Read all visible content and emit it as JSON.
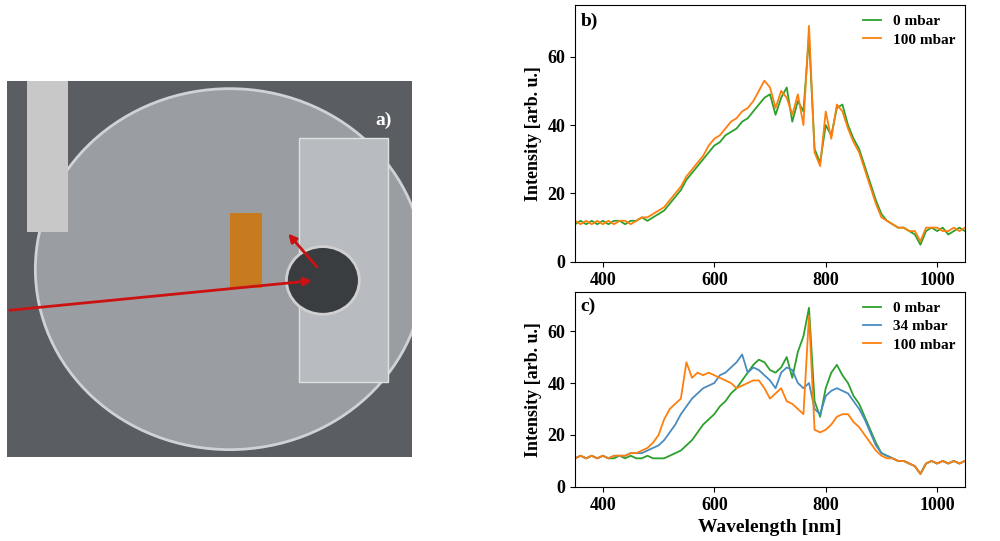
{
  "panel_a": {
    "label": "a)"
  },
  "chart_data": [
    {
      "type": "line",
      "title": "b)",
      "y_label": "Intensity [arb. u.]",
      "x": [
        350,
        360,
        370,
        380,
        390,
        400,
        410,
        420,
        430,
        440,
        450,
        460,
        470,
        480,
        490,
        500,
        510,
        520,
        530,
        540,
        550,
        560,
        570,
        580,
        590,
        600,
        610,
        620,
        630,
        640,
        650,
        660,
        670,
        680,
        690,
        700,
        710,
        720,
        730,
        740,
        750,
        760,
        770,
        780,
        790,
        800,
        810,
        820,
        830,
        840,
        850,
        860,
        870,
        880,
        890,
        900,
        910,
        920,
        930,
        940,
        950,
        960,
        970,
        980,
        990,
        1000,
        1010,
        1020,
        1030,
        1040,
        1050
      ],
      "xlim": [
        350,
        1050
      ],
      "xticks": [
        400,
        600,
        800,
        1000
      ],
      "ylim": [
        0,
        75
      ],
      "yticks": [
        0,
        20,
        40,
        60
      ],
      "legend": "upper right",
      "series": [
        {
          "name": "0 mbar",
          "color": "#2ca02c",
          "values": [
            11,
            12,
            11,
            12,
            11,
            12,
            11,
            12,
            12,
            11,
            12,
            12,
            13,
            12,
            13,
            14,
            15,
            17,
            19,
            21,
            24,
            26,
            28,
            30,
            32,
            34,
            35,
            37,
            38,
            39,
            41,
            42,
            44,
            46,
            48,
            49,
            43,
            48,
            51,
            41,
            47,
            44,
            66,
            33,
            29,
            40,
            37,
            45,
            46,
            40,
            36,
            33,
            28,
            23,
            18,
            14,
            12,
            11,
            10,
            10,
            9,
            8,
            5,
            9,
            10,
            9,
            10,
            8,
            9,
            10,
            9
          ]
        },
        {
          "name": "100 mbar",
          "color": "#ff7f0e",
          "values": [
            12,
            11,
            12,
            11,
            12,
            11,
            12,
            11,
            12,
            12,
            11,
            12,
            13,
            13,
            14,
            15,
            16,
            18,
            20,
            22,
            25,
            27,
            29,
            31,
            34,
            36,
            37,
            39,
            41,
            42,
            44,
            45,
            47,
            50,
            53,
            51,
            45,
            50,
            48,
            43,
            49,
            40,
            69,
            32,
            28,
            44,
            36,
            46,
            44,
            39,
            35,
            32,
            27,
            22,
            17,
            13,
            12,
            11,
            10,
            10,
            9,
            9,
            6,
            10,
            10,
            10,
            9,
            9,
            10,
            9,
            10
          ]
        }
      ]
    },
    {
      "type": "line",
      "title": "c)",
      "x_label": "Wavelength [nm]",
      "y_label": "Intensity [arb. u.]",
      "x": [
        350,
        360,
        370,
        380,
        390,
        400,
        410,
        420,
        430,
        440,
        450,
        460,
        470,
        480,
        490,
        500,
        510,
        520,
        530,
        540,
        550,
        560,
        570,
        580,
        590,
        600,
        610,
        620,
        630,
        640,
        650,
        660,
        670,
        680,
        690,
        700,
        710,
        720,
        730,
        740,
        750,
        760,
        770,
        780,
        790,
        800,
        810,
        820,
        830,
        840,
        850,
        860,
        870,
        880,
        890,
        900,
        910,
        920,
        930,
        940,
        950,
        960,
        970,
        980,
        990,
        1000,
        1010,
        1020,
        1030,
        1040,
        1050
      ],
      "xlim": [
        350,
        1050
      ],
      "xticks": [
        400,
        600,
        800,
        1000
      ],
      "ylim": [
        0,
        75
      ],
      "yticks": [
        0,
        20,
        40,
        60
      ],
      "legend": "upper right",
      "series": [
        {
          "name": "0 mbar",
          "color": "#2ca02c",
          "values": [
            11,
            12,
            11,
            12,
            11,
            12,
            11,
            11,
            12,
            11,
            12,
            11,
            11,
            12,
            11,
            11,
            11,
            12,
            13,
            14,
            16,
            18,
            21,
            24,
            26,
            28,
            31,
            33,
            36,
            38,
            41,
            44,
            47,
            49,
            48,
            45,
            44,
            46,
            50,
            42,
            52,
            58,
            69,
            33,
            27,
            38,
            44,
            47,
            43,
            40,
            35,
            32,
            27,
            22,
            17,
            13,
            12,
            11,
            10,
            10,
            9,
            8,
            5,
            9,
            10,
            9,
            10,
            9,
            10,
            9,
            10
          ]
        },
        {
          "name": "34 mbar",
          "color": "#4a8cc0",
          "values": [
            11,
            12,
            11,
            12,
            11,
            12,
            11,
            12,
            12,
            12,
            13,
            13,
            13,
            14,
            15,
            16,
            18,
            21,
            24,
            28,
            31,
            34,
            36,
            38,
            39,
            40,
            43,
            44,
            46,
            48,
            51,
            44,
            46,
            45,
            43,
            41,
            38,
            44,
            46,
            45,
            40,
            38,
            40,
            30,
            28,
            35,
            37,
            38,
            37,
            36,
            33,
            30,
            26,
            21,
            16,
            13,
            12,
            11,
            10,
            10,
            9,
            8,
            5,
            9,
            10,
            9,
            10,
            9,
            10,
            9,
            10
          ]
        },
        {
          "name": "100 mbar",
          "color": "#ff7f0e",
          "values": [
            11,
            12,
            11,
            12,
            11,
            12,
            11,
            12,
            12,
            12,
            13,
            13,
            14,
            15,
            17,
            20,
            26,
            30,
            32,
            34,
            48,
            42,
            44,
            43,
            44,
            43,
            42,
            41,
            40,
            38,
            39,
            40,
            41,
            41,
            38,
            34,
            36,
            38,
            33,
            32,
            30,
            28,
            66,
            22,
            21,
            22,
            24,
            27,
            28,
            28,
            25,
            23,
            20,
            17,
            14,
            12,
            11,
            11,
            10,
            10,
            9,
            8,
            5,
            9,
            10,
            9,
            10,
            9,
            10,
            9,
            10
          ]
        }
      ]
    }
  ]
}
